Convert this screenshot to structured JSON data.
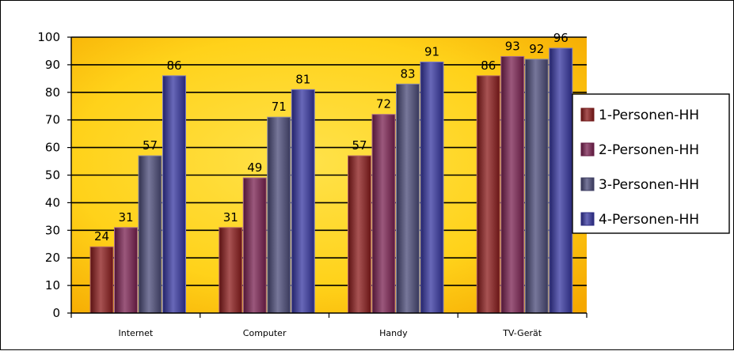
{
  "chart_data": {
    "type": "bar",
    "title": "",
    "xlabel": "",
    "ylabel": "",
    "ylim": [
      0,
      100
    ],
    "yticks": [
      0,
      10,
      20,
      30,
      40,
      50,
      60,
      70,
      80,
      90,
      100
    ],
    "categories": [
      "Internet",
      "Computer",
      "Handy",
      "TV-Gerät"
    ],
    "series": [
      {
        "name": "1-Personen-HH",
        "color": "#8b1a1a",
        "values": [
          24,
          31,
          57,
          86
        ]
      },
      {
        "name": "2-Personen-HH",
        "color": "#7a2050",
        "values": [
          31,
          49,
          72,
          93
        ]
      },
      {
        "name": "3-Personen-HH",
        "color": "#4a4a78",
        "values": [
          57,
          71,
          83,
          92
        ]
      },
      {
        "name": "4-Personen-HH",
        "color": "#3535a0",
        "values": [
          86,
          81,
          91,
          96
        ]
      }
    ],
    "grid": true,
    "legend_position": "right",
    "plot_background": "yellow-orange gradient"
  }
}
